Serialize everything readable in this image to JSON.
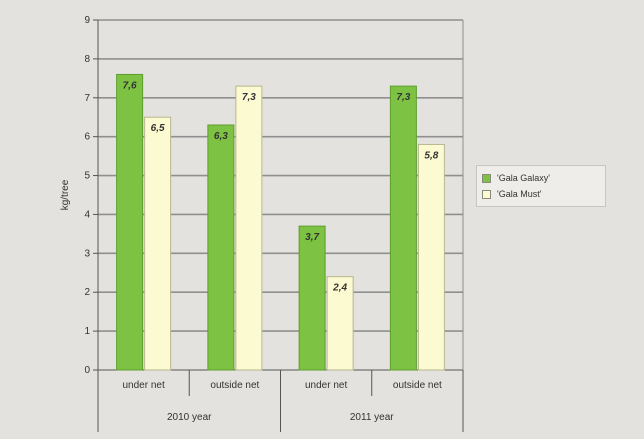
{
  "chart_data": {
    "type": "bar",
    "ylabel": "kg/tree",
    "ylim": [
      0,
      9
    ],
    "yticks": [
      "0",
      "1",
      "2",
      "3",
      "4",
      "5",
      "6",
      "7",
      "8",
      "9"
    ],
    "grid": true,
    "legend_position": "right",
    "groups": [
      {
        "label": "2010 year",
        "categories": [
          "under net",
          "outside net"
        ]
      },
      {
        "label": "2011 year",
        "categories": [
          "under net",
          "outside net"
        ]
      }
    ],
    "categories": [
      "under net",
      "outside net",
      "under net",
      "outside net"
    ],
    "series": [
      {
        "name": "'Gala Galaxy'",
        "color": "#7dc242",
        "values": [
          7.6,
          6.3,
          3.7,
          7.3
        ],
        "labels": [
          "7,6",
          "6,3",
          "3,7",
          "7,3"
        ]
      },
      {
        "name": "'Gala Must'",
        "color": "#fcfad0",
        "values": [
          6.5,
          7.3,
          2.4,
          5.8
        ],
        "labels": [
          "6,5",
          "7,3",
          "2,4",
          "5,8"
        ]
      }
    ]
  }
}
